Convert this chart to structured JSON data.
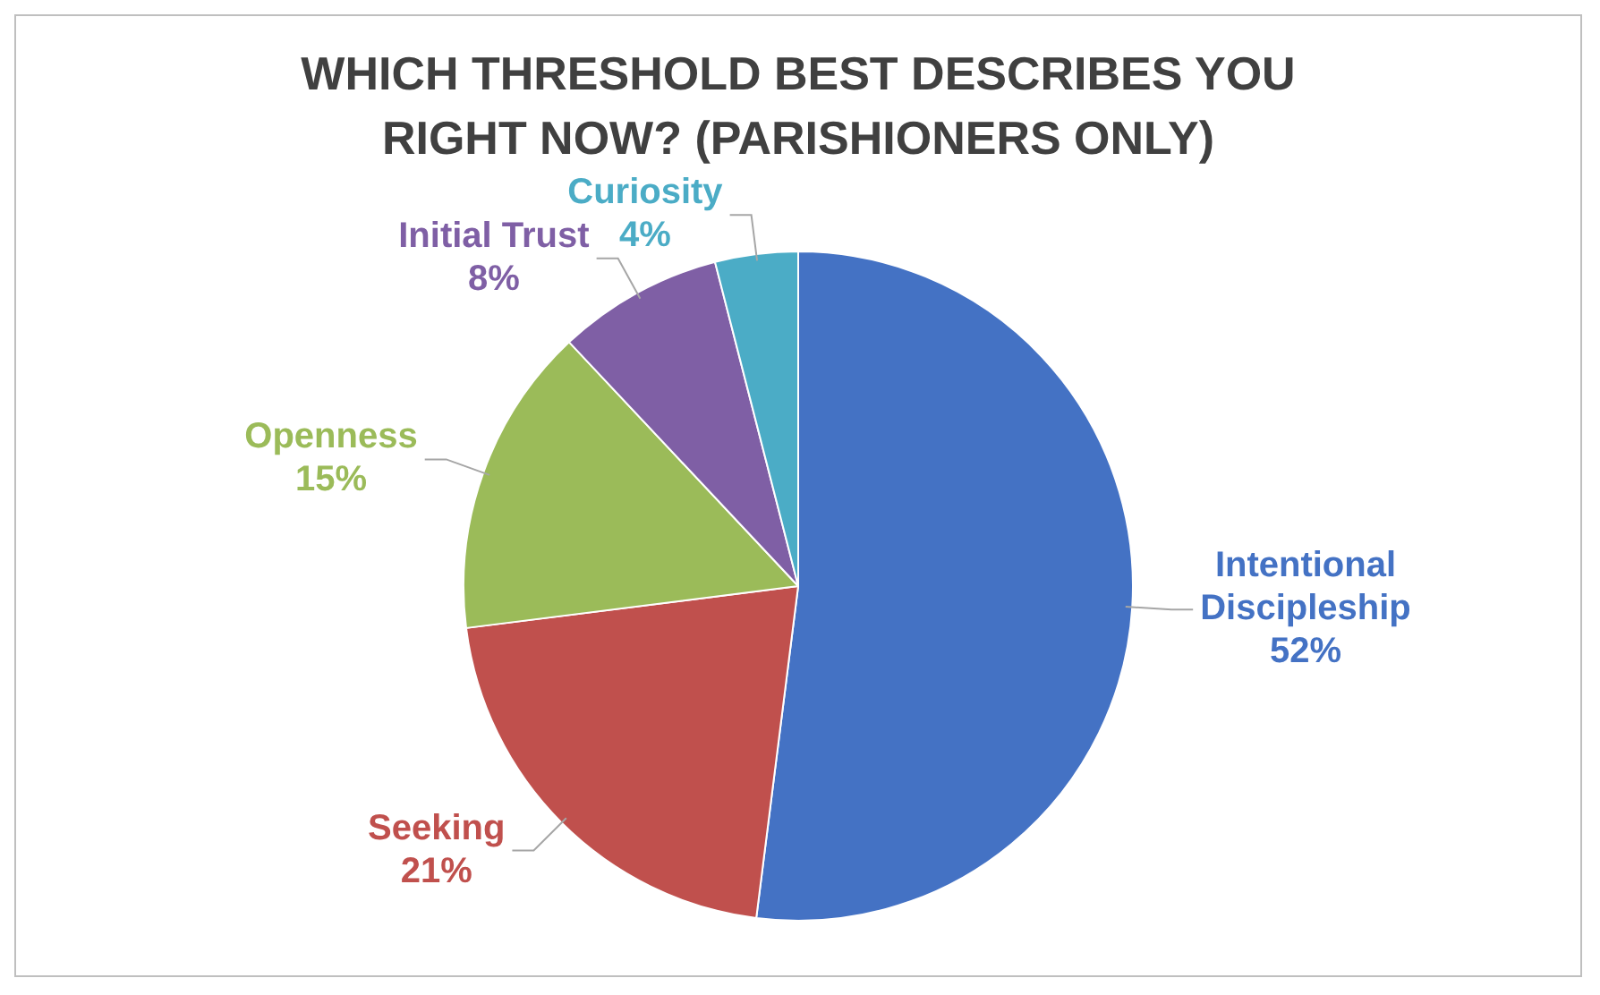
{
  "chart_data": {
    "type": "pie",
    "title": "WHICH THRESHOLD BEST DESCRIBES YOU RIGHT NOW? (PARISHIONERS ONLY)",
    "categories": [
      "Intentional Discipleship",
      "Seeking",
      "Openness",
      "Initial Trust",
      "Curiosity"
    ],
    "values": [
      52,
      21,
      15,
      8,
      4
    ],
    "value_labels": [
      "52%",
      "21%",
      "15%",
      "8%",
      "4%"
    ],
    "colors": [
      "#4472c4",
      "#c0504d",
      "#9bbb59",
      "#7f5fa5",
      "#4bacc6"
    ],
    "legend": false
  }
}
